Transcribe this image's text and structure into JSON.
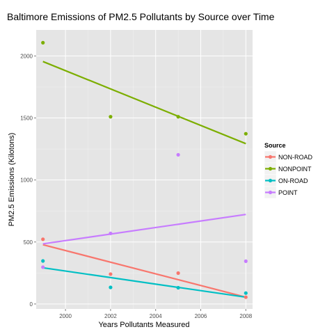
{
  "chart_data": {
    "type": "scatter",
    "title": "Baltimore Emissions of PM2.5 Pollutants by Source over Time",
    "xlabel": "Years Pollutants Measured",
    "ylabel": "PM2.5 Emissions (Kilotons)",
    "xlim": [
      1998.7,
      2008.3
    ],
    "ylim": [
      -40,
      2210
    ],
    "x_ticks": [
      2000,
      2002,
      2004,
      2006,
      2008
    ],
    "y_ticks": [
      0,
      500,
      1000,
      1500,
      2000
    ],
    "grid": true,
    "background": "#e5e5e5",
    "legend": {
      "title": "Source",
      "position": "right"
    },
    "series": [
      {
        "name": "NON-ROAD",
        "color": "#f8766d",
        "x": [
          1999,
          2002,
          2005,
          2008
        ],
        "y": [
          522,
          241,
          249,
          55
        ],
        "trend": {
          "x": [
            1999,
            2008
          ],
          "y": [
            478,
            55
          ]
        }
      },
      {
        "name": "NONPOINT",
        "color": "#7cae00",
        "x": [
          1999,
          2002,
          2005,
          2008
        ],
        "y": [
          2107,
          1510,
          1510,
          1373
        ],
        "trend": {
          "x": [
            1999,
            2008
          ],
          "y": [
            1955,
            1293
          ]
        }
      },
      {
        "name": "ON-ROAD",
        "color": "#00bfc4",
        "x": [
          1999,
          2002,
          2005,
          2008
        ],
        "y": [
          347,
          134,
          131,
          88
        ],
        "trend": {
          "x": [
            1999,
            2008
          ],
          "y": [
            292,
            55
          ]
        }
      },
      {
        "name": "POINT",
        "color": "#c77cff",
        "x": [
          1999,
          2002,
          2005,
          2008
        ],
        "y": [
          297,
          569,
          1203,
          345
        ],
        "trend": {
          "x": [
            1999,
            2008
          ],
          "y": [
            485,
            722
          ]
        }
      }
    ]
  }
}
